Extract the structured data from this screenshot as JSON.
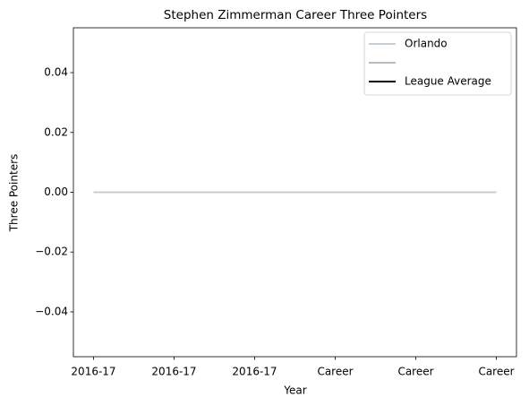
{
  "chart_data": {
    "type": "line",
    "title": "Stephen Zimmerman Career Three Pointers",
    "x_label": "Year",
    "y_label": "Three Pointers",
    "categories": [
      "2016-17",
      "2016-17",
      "2016-17",
      "Career",
      "Career",
      "Career"
    ],
    "series": [
      {
        "name": "Orlando",
        "color": "#c4ced4",
        "values": [
          0,
          0,
          0,
          0,
          0,
          0
        ]
      },
      {
        "name": null,
        "color": "#b6bbbf",
        "values": [
          null,
          null,
          null,
          null,
          null,
          null
        ]
      },
      {
        "name": "League Average",
        "color": "#000000",
        "values": [
          null,
          null,
          null,
          null,
          null,
          null
        ]
      }
    ],
    "ylim": [
      -0.055,
      0.055
    ],
    "yticks": [
      {
        "value": -0.04,
        "label": "−0.04"
      },
      {
        "value": -0.02,
        "label": "−0.02"
      },
      {
        "value": 0,
        "label": "0.00"
      },
      0.02,
      0.04
    ],
    "legend": "upper right"
  }
}
